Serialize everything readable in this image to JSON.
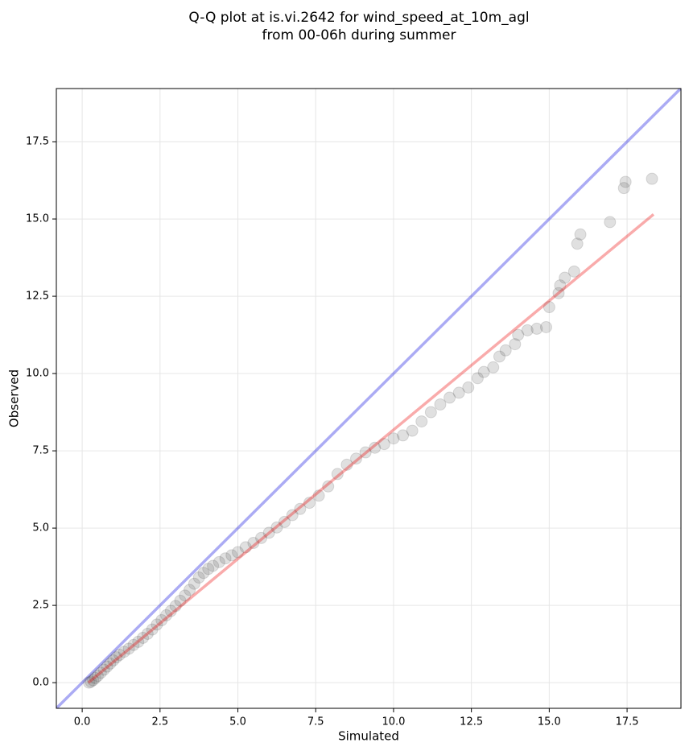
{
  "chart_data": {
    "type": "scatter",
    "title_lines": [
      "Q-Q plot at is.vi.2642 for wind_speed_at_10m_agl",
      "from 00-06h during summer"
    ],
    "xlabel": "Simulated",
    "ylabel": "Observed",
    "xlim": [
      -0.83,
      19.23
    ],
    "ylim": [
      -0.83,
      19.22
    ],
    "xticks": [
      {
        "value": 0,
        "label": "0.0"
      },
      2.5,
      {
        "value": 5,
        "label": "5.0"
      },
      7.5,
      {
        "value": 10,
        "label": "10.0"
      },
      12.5,
      {
        "value": 15,
        "label": "15.0"
      },
      17.5
    ],
    "yticks": [
      {
        "value": 0,
        "label": "0.0"
      },
      2.5,
      {
        "value": 5,
        "label": "5.0"
      },
      7.5,
      {
        "value": 10,
        "label": "10.0"
      },
      12.5,
      {
        "value": 15,
        "label": "15.0"
      },
      17.5
    ],
    "grid": true,
    "point_color": "#555555",
    "x": [
      0.22,
      0.28,
      0.35,
      0.42,
      0.5,
      0.6,
      0.7,
      0.8,
      0.9,
      1.0,
      1.1,
      1.2,
      1.35,
      1.5,
      1.65,
      1.8,
      1.95,
      2.1,
      2.25,
      2.4,
      2.55,
      2.7,
      2.85,
      3.0,
      3.15,
      3.3,
      3.45,
      3.6,
      3.75,
      3.9,
      4.05,
      4.2,
      4.4,
      4.6,
      4.8,
      5.0,
      5.25,
      5.5,
      5.75,
      6.0,
      6.25,
      6.5,
      6.75,
      7.0,
      7.3,
      7.6,
      7.9,
      8.2,
      8.5,
      8.8,
      9.1,
      9.4,
      9.7,
      10.0,
      10.3,
      10.6,
      10.9,
      11.2,
      11.5,
      11.8,
      12.1,
      12.4,
      12.7,
      12.9,
      13.2,
      13.4,
      13.6,
      13.9,
      14.0,
      14.3,
      14.6,
      14.9,
      15.0,
      15.3,
      15.35,
      15.5,
      15.8,
      15.9,
      16.0,
      16.95,
      17.4,
      17.45,
      18.3
    ],
    "y": [
      0.0,
      0.03,
      0.08,
      0.15,
      0.22,
      0.32,
      0.42,
      0.52,
      0.62,
      0.72,
      0.82,
      0.9,
      1.0,
      1.1,
      1.22,
      1.32,
      1.45,
      1.58,
      1.72,
      1.88,
      2.02,
      2.18,
      2.32,
      2.48,
      2.65,
      2.82,
      3.0,
      3.2,
      3.4,
      3.55,
      3.68,
      3.78,
      3.9,
      4.02,
      4.12,
      4.22,
      4.38,
      4.52,
      4.68,
      4.85,
      5.02,
      5.2,
      5.42,
      5.62,
      5.82,
      6.05,
      6.35,
      6.75,
      7.05,
      7.25,
      7.45,
      7.6,
      7.72,
      7.9,
      8.0,
      8.15,
      8.45,
      8.75,
      9.0,
      9.22,
      9.38,
      9.55,
      9.85,
      10.05,
      10.2,
      10.55,
      10.75,
      10.95,
      11.25,
      11.4,
      11.45,
      11.5,
      12.15,
      12.6,
      12.85,
      13.1,
      13.3,
      14.2,
      14.5,
      14.9,
      16.0,
      16.2,
      16.3
    ],
    "identity_line": {
      "color": "#0000dd",
      "x": [
        -0.83,
        19.23
      ],
      "y": [
        -0.83,
        19.23
      ]
    },
    "fit_line": {
      "color": "#ee0000",
      "x": [
        0.2,
        18.35
      ],
      "y": [
        0.0,
        15.15
      ]
    }
  }
}
